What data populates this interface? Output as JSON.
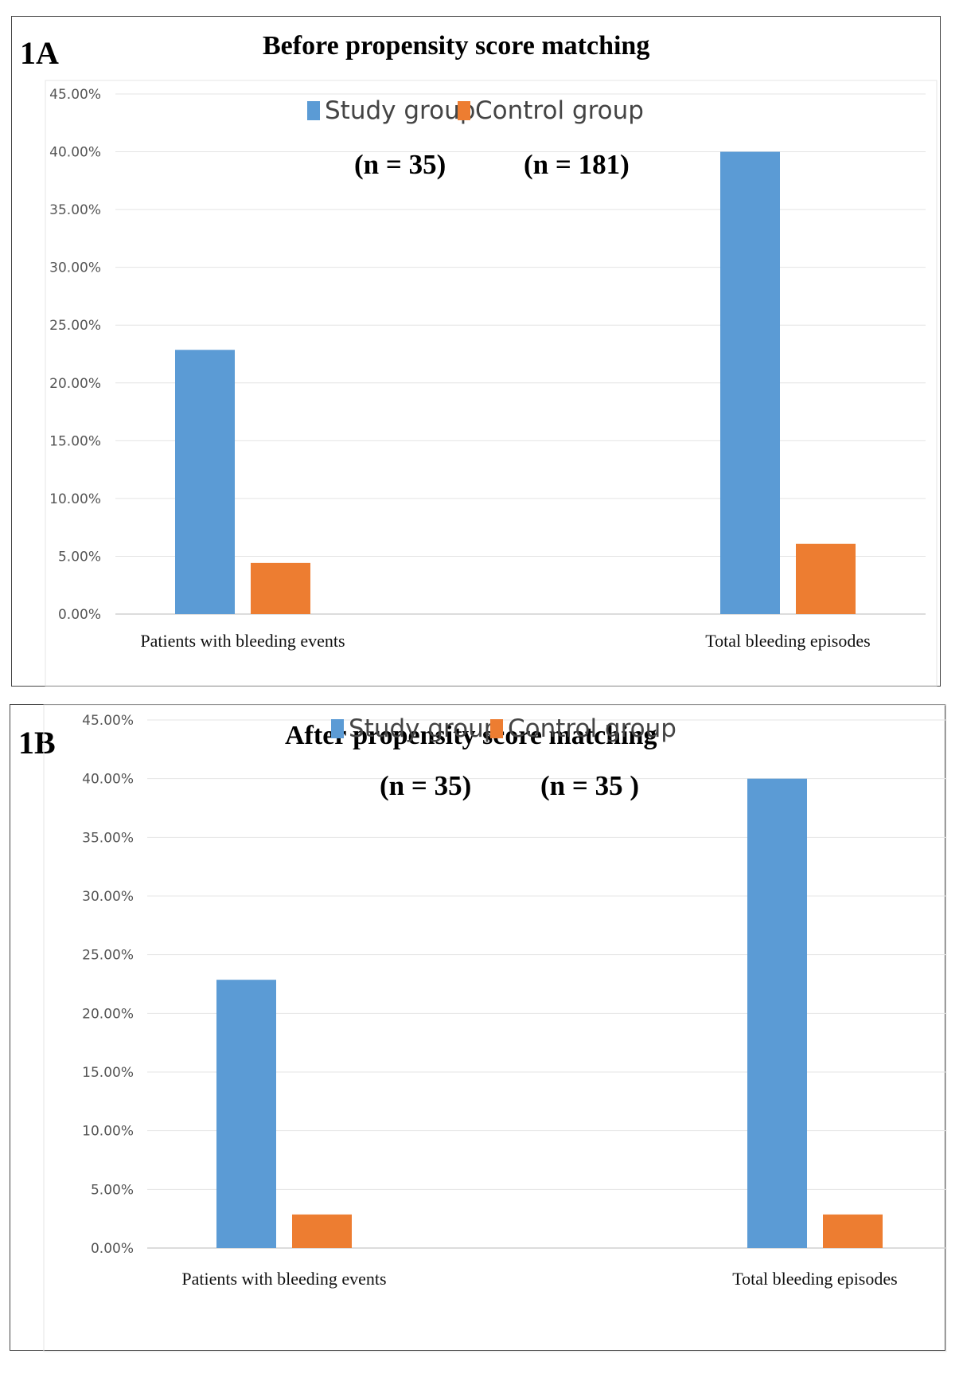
{
  "panels": [
    {
      "id": "1A",
      "title": "Before propensity score matching",
      "n_labels": [
        "(n = 35)",
        "(n = 181)"
      ]
    },
    {
      "id": "1B",
      "title": "After propensity score matching",
      "n_labels": [
        "(n = 35)",
        "(n =  35 )"
      ]
    }
  ],
  "colors": {
    "study": "#5b9bd5",
    "control": "#ed7d31",
    "grid": "#e4e4e4",
    "axis": "#d0d0d0"
  },
  "chart_data": [
    {
      "type": "bar",
      "title": "Before propensity score matching",
      "categories": [
        "Patients with bleeding events",
        "Total bleeding episodes"
      ],
      "series": [
        {
          "name": "Study group",
          "values": [
            22.86,
            40.0
          ]
        },
        {
          "name": "Control group",
          "values": [
            4.42,
            6.08
          ]
        }
      ],
      "ylim": [
        0,
        45
      ],
      "yticks": [
        "0.00%",
        "5.00%",
        "10.00%",
        "15.00%",
        "20.00%",
        "25.00%",
        "30.00%",
        "35.00%",
        "40.00%",
        "45.00%"
      ],
      "xlabel": "",
      "ylabel": "",
      "grid": true,
      "legend": "top-center"
    },
    {
      "type": "bar",
      "title": "After propensity score matching",
      "categories": [
        "Patients with bleeding events",
        "Total bleeding episodes"
      ],
      "series": [
        {
          "name": "Study group",
          "values": [
            22.86,
            40.0
          ]
        },
        {
          "name": "Control group",
          "values": [
            2.86,
            2.86
          ]
        }
      ],
      "ylim": [
        0,
        45
      ],
      "yticks": [
        "0.00%",
        "5.00%",
        "10.00%",
        "15.00%",
        "20.00%",
        "25.00%",
        "30.00%",
        "35.00%",
        "40.00%",
        "45.00%"
      ],
      "xlabel": "",
      "ylabel": "",
      "grid": true,
      "legend": "top-center"
    }
  ]
}
